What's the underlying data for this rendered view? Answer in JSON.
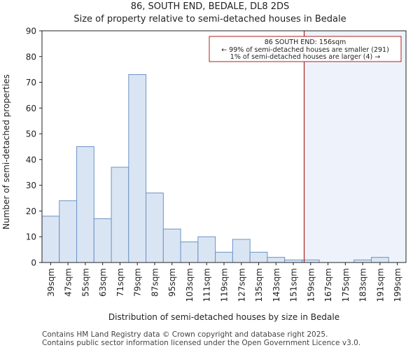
{
  "colors": {
    "bar_fill": "#dae5f4",
    "bar_edge": "#6b93c4",
    "marker_line": "#b22222",
    "shade_fill": "#eef3fb",
    "annotation_edge": "#b22222",
    "axis": "#222222"
  },
  "chart_data": {
    "type": "bar",
    "title": "86, SOUTH END, BEDALE, DL8 2DS",
    "subtitle": "Size of property relative to semi-detached houses in Bedale",
    "xlabel": "Distribution of semi-detached houses by size in Bedale",
    "ylabel": "Number of semi-detached properties",
    "ylim": [
      0,
      90
    ],
    "yticks": [
      0,
      10,
      20,
      30,
      40,
      50,
      60,
      70,
      80,
      90
    ],
    "bin_start": 35,
    "bin_width": 8,
    "categories": [
      "39sqm",
      "47sqm",
      "55sqm",
      "63sqm",
      "71sqm",
      "79sqm",
      "87sqm",
      "95sqm",
      "103sqm",
      "111sqm",
      "119sqm",
      "127sqm",
      "135sqm",
      "143sqm",
      "151sqm",
      "159sqm",
      "167sqm",
      "175sqm",
      "183sqm",
      "191sqm",
      "199sqm"
    ],
    "values": [
      18,
      24,
      45,
      17,
      37,
      73,
      27,
      13,
      8,
      10,
      4,
      9,
      4,
      2,
      1,
      1,
      0,
      0,
      1,
      2,
      0
    ],
    "marker": {
      "value": 156,
      "unit": "sqm"
    },
    "annotation": {
      "line1": "86 SOUTH END: 156sqm",
      "line2": "← 99% of semi-detached houses are smaller (291)",
      "line3": "1% of semi-detached houses are larger (4) →"
    }
  },
  "footer": {
    "line1": "Contains HM Land Registry data © Crown copyright and database right 2025.",
    "line2": "Contains public sector information licensed under the Open Government Licence v3.0."
  }
}
